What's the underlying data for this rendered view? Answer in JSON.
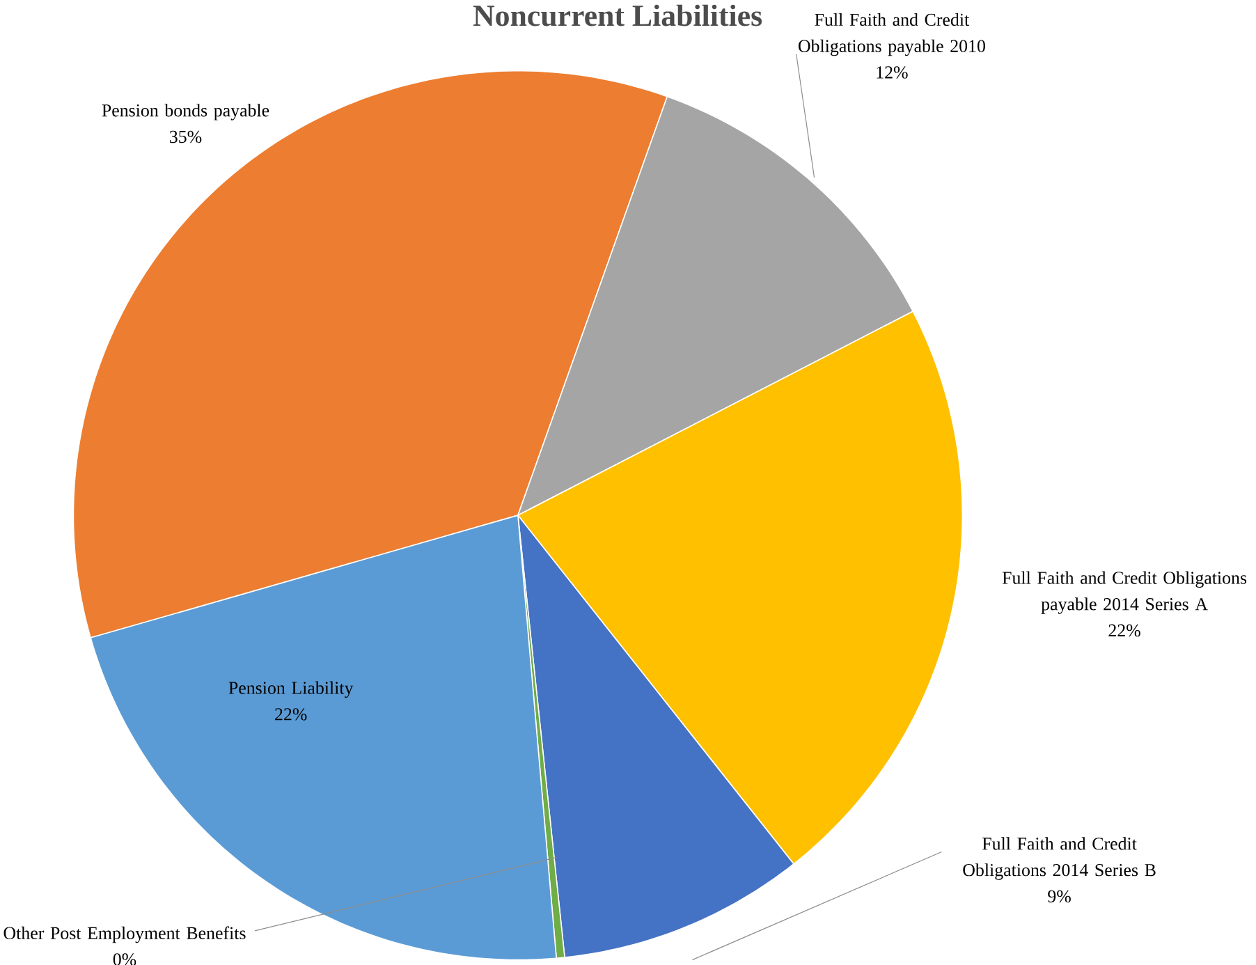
{
  "chart_data": {
    "type": "pie",
    "title": "Noncurrent Liabilities",
    "categories": [
      "Pension bonds payable",
      "Full Faith and Credit Obligations payable 2010",
      "Full Faith and Credit Obligations payable 2014 Series A",
      "Full Faith and Credit Obligations 2014 Series B",
      "Other Post Employment Benefits",
      "Pension Liability"
    ],
    "values": [
      35,
      12,
      22,
      9,
      0.3,
      22
    ],
    "value_labels": [
      "35%",
      "12%",
      "22%",
      "9%",
      "0%",
      "22%"
    ],
    "colors": [
      "#ed7d31",
      "#a5a5a5",
      "#ffc000",
      "#4472c4",
      "#70ad47",
      "#5b9bd5"
    ]
  }
}
